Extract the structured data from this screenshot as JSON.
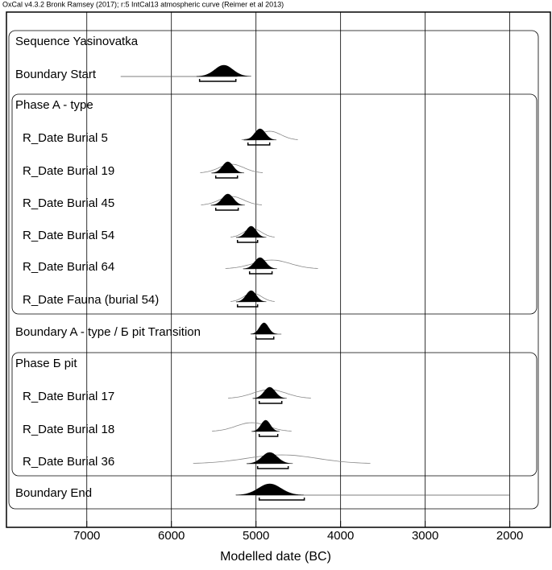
{
  "header": "OxCal v4.3.2 Bronk Ramsey (2017); r:5 IntCal13 atmospheric curve (Reimer et al 2013)",
  "chart_data": {
    "type": "multiplot",
    "xlabel": "Modelled date (BC)",
    "xlim": [
      7950,
      1520
    ],
    "xticks": [
      7000,
      6000,
      5000,
      4000,
      3000,
      2000
    ],
    "grid": true,
    "color": "#000000",
    "rows": [
      {
        "label": "Sequence Yasinovatka",
        "kind": "sequence"
      },
      {
        "label": "Boundary Start",
        "kind": "boundary",
        "outline": [
          6600,
          5219
        ],
        "mode": 5380,
        "range": [
          5667,
          5238
        ]
      },
      {
        "label": "Phase A - type",
        "kind": "phase"
      },
      {
        "label": "R_Date Burial 5",
        "kind": "date",
        "outline": [
          5170,
          4505
        ],
        "mode": 4952,
        "range": [
          5095,
          4838
        ]
      },
      {
        "label": "R_Date Burial 19",
        "kind": "date",
        "outline": [
          5660,
          4920
        ],
        "mode": 5333,
        "range": [
          5476,
          5219
        ]
      },
      {
        "label": "R_Date Burial 45",
        "kind": "date",
        "outline": [
          5650,
          4930
        ],
        "mode": 5333,
        "range": [
          5476,
          5210
        ]
      },
      {
        "label": "R_Date Burial 54",
        "kind": "date",
        "outline": [
          5300,
          4780
        ],
        "mode": 5057,
        "range": [
          5219,
          4981
        ]
      },
      {
        "label": "R_Date Burial 64",
        "kind": "date",
        "outline": [
          5362,
          4267
        ],
        "mode": 4952,
        "range": [
          5076,
          4810
        ]
      },
      {
        "label": "R_Date Fauna (burial 54)",
        "kind": "date",
        "outline": [
          5300,
          4780
        ],
        "mode": 5057,
        "range": [
          5219,
          4981
        ]
      },
      {
        "label": "Boundary A - type / Б pit Transition",
        "kind": "boundary",
        "outline": [
          5000,
          4700
        ],
        "mode": 4905,
        "range": [
          5000,
          4790
        ]
      },
      {
        "label": "Phase Б pit",
        "kind": "phase"
      },
      {
        "label": "R_Date Burial 17",
        "kind": "date",
        "outline": [
          5330,
          4350
        ],
        "mode": 4838,
        "range": [
          4962,
          4695
        ]
      },
      {
        "label": "R_Date Burial 18",
        "kind": "date",
        "outline": [
          5520,
          4580
        ],
        "mode": 4886,
        "range": [
          4962,
          4743
        ]
      },
      {
        "label": "R_Date Burial 36",
        "kind": "date",
        "outline": [
          5743,
          3648
        ],
        "mode": 4838,
        "range": [
          4981,
          4619
        ]
      },
      {
        "label": "Boundary End",
        "kind": "boundary",
        "outline": [
          5000,
          2000
        ],
        "mode": 4838,
        "range": [
          4962,
          4429
        ]
      }
    ]
  }
}
